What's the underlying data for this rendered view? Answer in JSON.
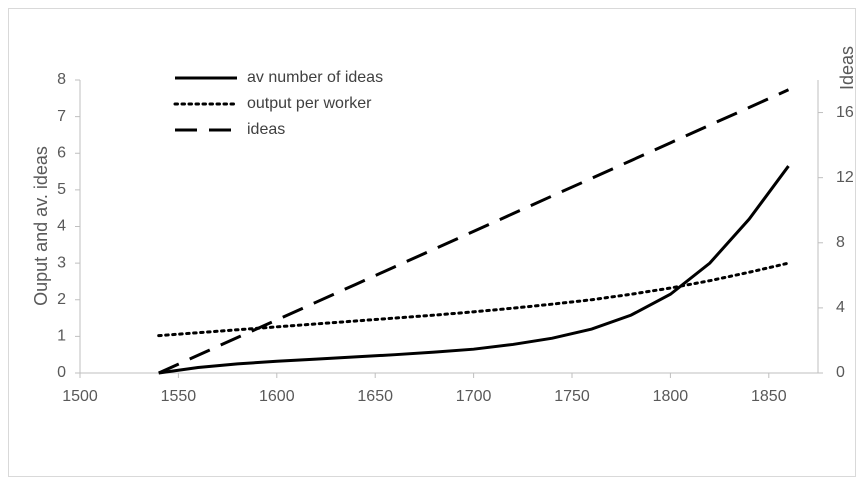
{
  "chart_data": {
    "type": "line",
    "y_label": "Ouput and av. ideas",
    "y2_label": "Ideas",
    "x": [
      1540,
      1560,
      1580,
      1600,
      1620,
      1640,
      1660,
      1680,
      1700,
      1720,
      1740,
      1760,
      1780,
      1800,
      1820,
      1840,
      1860
    ],
    "series": [
      {
        "name": "av number of ideas",
        "color": "#000000",
        "style": "solid",
        "values": [
          0,
          0.15,
          0.25,
          0.32,
          0.38,
          0.44,
          0.5,
          0.57,
          0.65,
          0.78,
          0.95,
          1.2,
          1.58,
          2.15,
          3.0,
          4.2,
          5.65
        ]
      },
      {
        "name": "output per worker",
        "color": "#000000",
        "style": "dotted",
        "values": [
          1.02,
          1.1,
          1.18,
          1.26,
          1.34,
          1.42,
          1.5,
          1.58,
          1.67,
          1.77,
          1.88,
          2.0,
          2.15,
          2.32,
          2.52,
          2.75,
          3.0
        ]
      },
      {
        "name": "ideas",
        "color": "#000000",
        "style": "dashed",
        "axis": "y2",
        "values": [
          0,
          1.09,
          2.18,
          3.26,
          4.35,
          5.44,
          6.53,
          7.61,
          8.7,
          9.79,
          10.88,
          11.96,
          13.05,
          14.14,
          15.23,
          16.31,
          17.4
        ]
      }
    ],
    "xlim": [
      1500,
      1875
    ],
    "xticks": [
      1500,
      1550,
      1600,
      1650,
      1700,
      1750,
      1800,
      1850
    ],
    "ylim": [
      0,
      8
    ],
    "yticks": [
      0,
      1,
      2,
      3,
      4,
      5,
      6,
      7,
      8
    ],
    "y2lim": [
      0,
      18
    ],
    "y2ticks": [
      0,
      4,
      8,
      12,
      16
    ]
  }
}
